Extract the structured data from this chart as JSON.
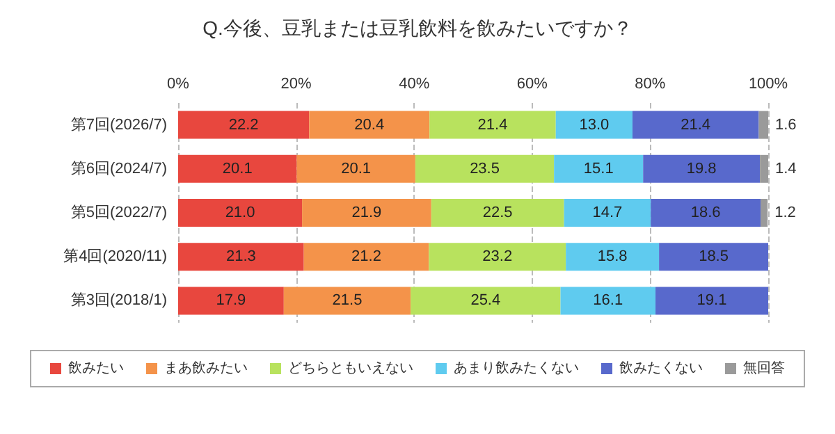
{
  "chart_data": {
    "type": "bar",
    "orientation": "horizontal",
    "stacked": true,
    "title": "Q.今後、豆乳または豆乳飲料を飲みたいですか？",
    "categories": [
      "第7回(2026/7)",
      "第6回(2024/7)",
      "第5回(2022/7)",
      "第4回(2020/11)",
      "第3回(2018/1)"
    ],
    "series": [
      {
        "name": "飲みたい",
        "color": "#e8473e",
        "values": [
          22.2,
          20.1,
          21.0,
          21.3,
          17.9
        ],
        "value_labels": [
          "22.2",
          "20.1",
          "21.0",
          "21.3",
          "17.9"
        ]
      },
      {
        "name": "まあ飲みたい",
        "color": "#f4934a",
        "values": [
          20.4,
          20.1,
          21.9,
          21.2,
          21.5
        ],
        "value_labels": [
          "20.4",
          "20.1",
          "21.9",
          "21.2",
          "21.5"
        ]
      },
      {
        "name": "どちらともいえない",
        "color": "#b8e25e",
        "values": [
          21.4,
          23.5,
          22.5,
          23.2,
          25.4
        ],
        "value_labels": [
          "21.4",
          "23.5",
          "22.5",
          "23.2",
          "25.4"
        ]
      },
      {
        "name": "あまり飲みたくない",
        "color": "#5fcbef",
        "values": [
          13.0,
          15.1,
          14.7,
          15.8,
          16.1
        ],
        "value_labels": [
          "13.0",
          "15.1",
          "14.7",
          "15.8",
          "16.1"
        ]
      },
      {
        "name": "飲みたくない",
        "color": "#5869cc",
        "values": [
          21.4,
          19.8,
          18.6,
          18.5,
          19.1
        ],
        "value_labels": [
          "21.4",
          "19.8",
          "18.6",
          "18.5",
          "19.1"
        ]
      },
      {
        "name": "無回答",
        "color": "#9a9a9a",
        "values": [
          1.6,
          1.4,
          1.2,
          null,
          null
        ],
        "value_labels": [
          "1.6",
          "1.4",
          "1.2",
          null,
          null
        ]
      }
    ],
    "xlim": [
      0,
      100
    ],
    "xticks": [
      {
        "value": 0,
        "label": "0%"
      },
      {
        "value": 20,
        "label": "20%"
      },
      {
        "value": 40,
        "label": "40%"
      },
      {
        "value": 60,
        "label": "60%"
      },
      {
        "value": 80,
        "label": "80%"
      },
      {
        "value": 100,
        "label": "100%"
      }
    ],
    "grid": "x",
    "legend": "bottom"
  }
}
